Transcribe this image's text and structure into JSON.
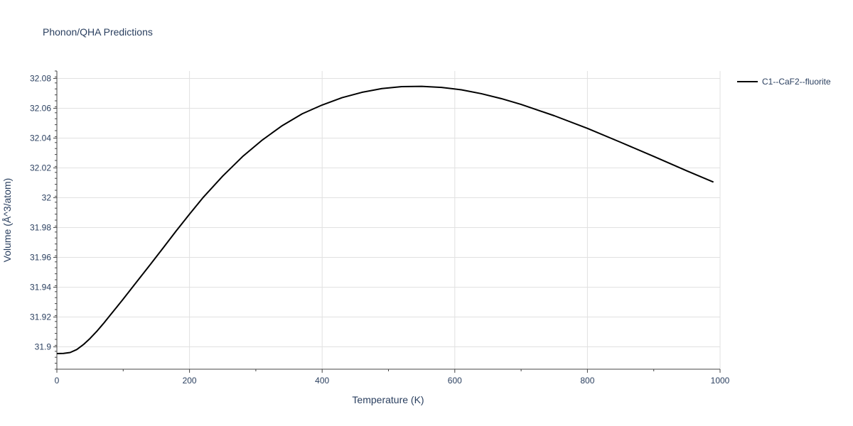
{
  "chart_data": {
    "type": "line",
    "title": "Phonon/QHA Predictions",
    "xlabel": "Temperature (K)",
    "ylabel": "Volume (Å^3/atom)",
    "xlim": [
      0,
      1000
    ],
    "ylim": [
      31.885,
      32.085
    ],
    "xticks": [
      0,
      200,
      400,
      600,
      800,
      1000
    ],
    "xtick_labels": [
      "0",
      "200",
      "400",
      "600",
      "800",
      "1000"
    ],
    "yticks": [
      31.9,
      31.92,
      31.94,
      31.96,
      31.98,
      32.0,
      32.02,
      32.04,
      32.06,
      32.08
    ],
    "ytick_labels": [
      "31.9",
      "31.92",
      "31.94",
      "31.96",
      "31.98",
      "32",
      "32.02",
      "32.04",
      "32.06",
      "32.08"
    ],
    "grid": true,
    "legend_position": "top-right",
    "series": [
      {
        "name": "C1--CaF2--fluorite",
        "color": "#000000",
        "x": [
          0,
          10,
          20,
          30,
          40,
          50,
          60,
          70,
          80,
          90,
          100,
          120,
          140,
          160,
          180,
          200,
          220,
          250,
          280,
          310,
          340,
          370,
          400,
          430,
          460,
          490,
          520,
          550,
          580,
          610,
          640,
          670,
          700,
          750,
          800,
          850,
          900,
          950,
          990
        ],
        "y": [
          31.8955,
          31.8956,
          31.8962,
          31.8982,
          31.9015,
          31.9056,
          31.9103,
          31.9155,
          31.921,
          31.9265,
          31.932,
          31.9434,
          31.9547,
          31.9662,
          31.9778,
          31.989,
          31.9999,
          32.0145,
          32.0276,
          32.0388,
          32.0484,
          32.0563,
          32.0622,
          32.0671,
          32.0707,
          32.0732,
          32.0745,
          32.0747,
          32.074,
          32.0724,
          32.0698,
          32.0665,
          32.0626,
          32.055,
          32.0465,
          32.0372,
          32.0277,
          32.018,
          32.0105
        ]
      }
    ]
  }
}
